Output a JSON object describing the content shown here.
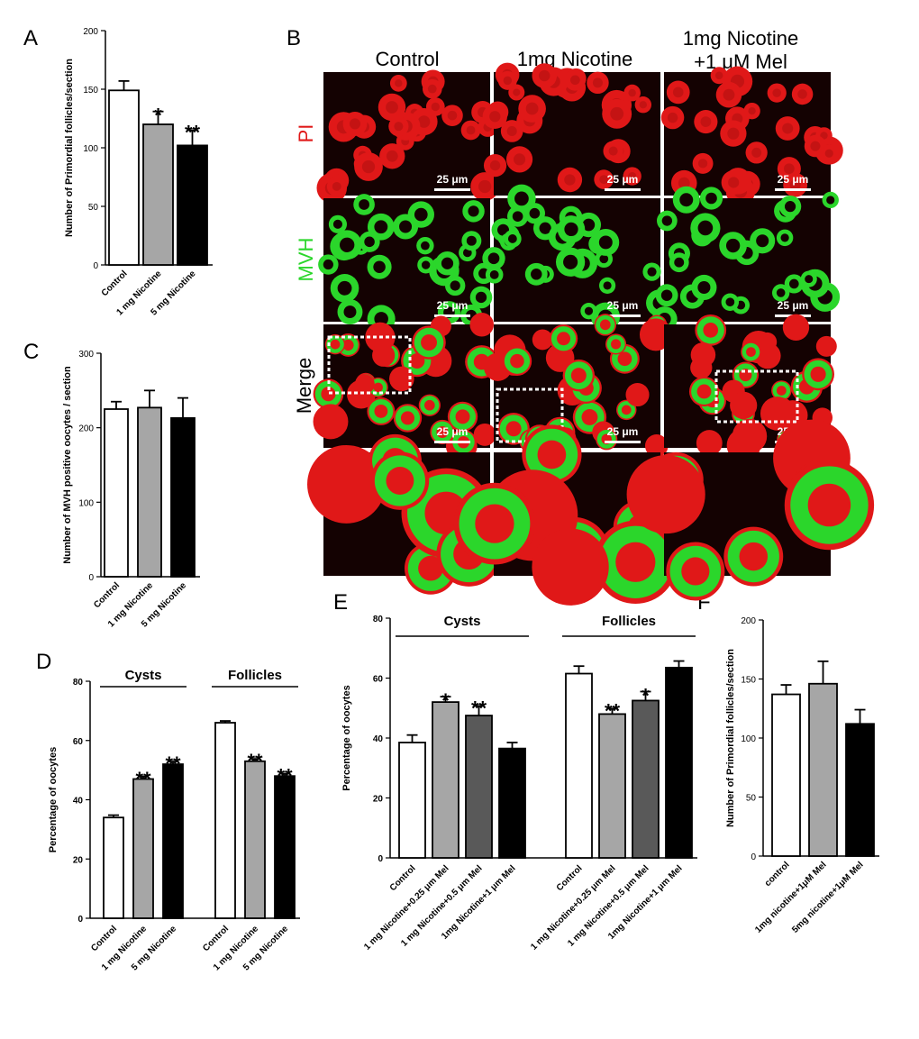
{
  "panels": {
    "A": "A",
    "B": "B",
    "C": "C",
    "D": "D",
    "E": "E",
    "F": "F"
  },
  "colors": {
    "white": "#ffffff",
    "light_gray": "#a6a6a6",
    "dark_gray": "#595959",
    "black": "#000000",
    "pi_red": "#e01818",
    "mvh_green": "#2bd62b",
    "stain_background": "#140202"
  },
  "micrograph": {
    "columns": [
      "Control",
      "1mg Nicotine",
      "1mg Nicotine",
      "+1 μM Mel"
    ],
    "column_titles": {
      "control": "Control",
      "nicotine": "1mg Nicotine",
      "mel_line1": "1mg Nicotine",
      "mel_line2": "+1 μM Mel"
    },
    "rows": {
      "pi": "PI",
      "mvh": "MVH",
      "merge": "Merge"
    },
    "scale_bar": "25 μm"
  },
  "chart_data": [
    {
      "panel": "A",
      "type": "bar",
      "ylabel": "Number of Primordial follicles/section",
      "ylim": [
        0,
        200
      ],
      "yticks": [
        0,
        50,
        100,
        150,
        200
      ],
      "categories": [
        "Control",
        "1 mg Nicotine",
        "5 mg Nicotine"
      ],
      "values": [
        149,
        120,
        102
      ],
      "errors": [
        8,
        11,
        13
      ],
      "colors": [
        "#ffffff",
        "#a6a6a6",
        "#000000"
      ],
      "significance": [
        "",
        "*",
        "**"
      ]
    },
    {
      "panel": "C",
      "type": "bar",
      "ylabel": "Number of MVH positive oocytes / section",
      "ylim": [
        0,
        300
      ],
      "yticks": [
        0,
        100,
        200,
        300
      ],
      "categories": [
        "Control",
        "1 mg Nicotine",
        "5 mg Nicotine"
      ],
      "values": [
        225,
        227,
        213
      ],
      "errors": [
        10,
        23,
        27
      ],
      "colors": [
        "#ffffff",
        "#a6a6a6",
        "#000000"
      ],
      "significance": [
        "",
        "",
        ""
      ]
    },
    {
      "panel": "D",
      "type": "bar",
      "ylabel": "Percentage of  oocytes",
      "ylim": [
        0,
        80
      ],
      "yticks": [
        0,
        20,
        40,
        60,
        80
      ],
      "groups": [
        "Cysts",
        "Follicles"
      ],
      "categories": [
        "Control",
        "1 mg Nicotine",
        "5 mg Nicotine",
        "Control",
        "1 mg Nicotine",
        "5 mg Nicotine"
      ],
      "values": [
        34,
        47,
        52,
        66,
        53,
        48
      ],
      "errors": [
        0.8,
        0.8,
        0.9,
        0.6,
        0.8,
        0.8
      ],
      "colors": [
        "#ffffff",
        "#a6a6a6",
        "#000000",
        "#ffffff",
        "#a6a6a6",
        "#000000"
      ],
      "significance": [
        "",
        "**",
        "**",
        "",
        "**",
        "**"
      ]
    },
    {
      "panel": "E",
      "type": "bar",
      "ylabel": "Percentage of oocytes",
      "ylim": [
        0,
        80
      ],
      "yticks": [
        0,
        20,
        40,
        60,
        80
      ],
      "groups": [
        "Cysts",
        "Follicles"
      ],
      "categories": [
        "Control",
        "1 mg Nicotine+0.25 μm Mel",
        "1 mg Nicotine+0.5 μm Mel",
        "1mg Nicotine+1 μm Mel",
        "Control",
        "1 mg Nicotine+0.25 μm Mel",
        "1 mg Nicotine+0.5 μm Mel",
        "1mg Nicotine+1 μm Mel"
      ],
      "values": [
        38.5,
        52,
        47.5,
        36.5,
        61.5,
        48,
        52.5,
        63.5
      ],
      "errors": [
        2.5,
        1.8,
        3.2,
        2,
        2.5,
        1.8,
        3,
        2.2
      ],
      "colors": [
        "#ffffff",
        "#a6a6a6",
        "#595959",
        "#000000",
        "#ffffff",
        "#a6a6a6",
        "#595959",
        "#000000"
      ],
      "significance": [
        "",
        "*",
        "**",
        "",
        "",
        "**",
        "*",
        ""
      ]
    },
    {
      "panel": "F",
      "type": "bar",
      "ylabel": "Number of Primordial follicles/section",
      "ylim": [
        0,
        200
      ],
      "yticks": [
        0,
        50,
        100,
        150,
        200
      ],
      "categories": [
        "control",
        "1mg nicotine+1μM Mel",
        "5mg nicotine+1μM Mel"
      ],
      "values": [
        137,
        146,
        112
      ],
      "errors": [
        8,
        19,
        12
      ],
      "colors": [
        "#ffffff",
        "#a6a6a6",
        "#000000"
      ],
      "significance": [
        "",
        "",
        ""
      ]
    }
  ]
}
